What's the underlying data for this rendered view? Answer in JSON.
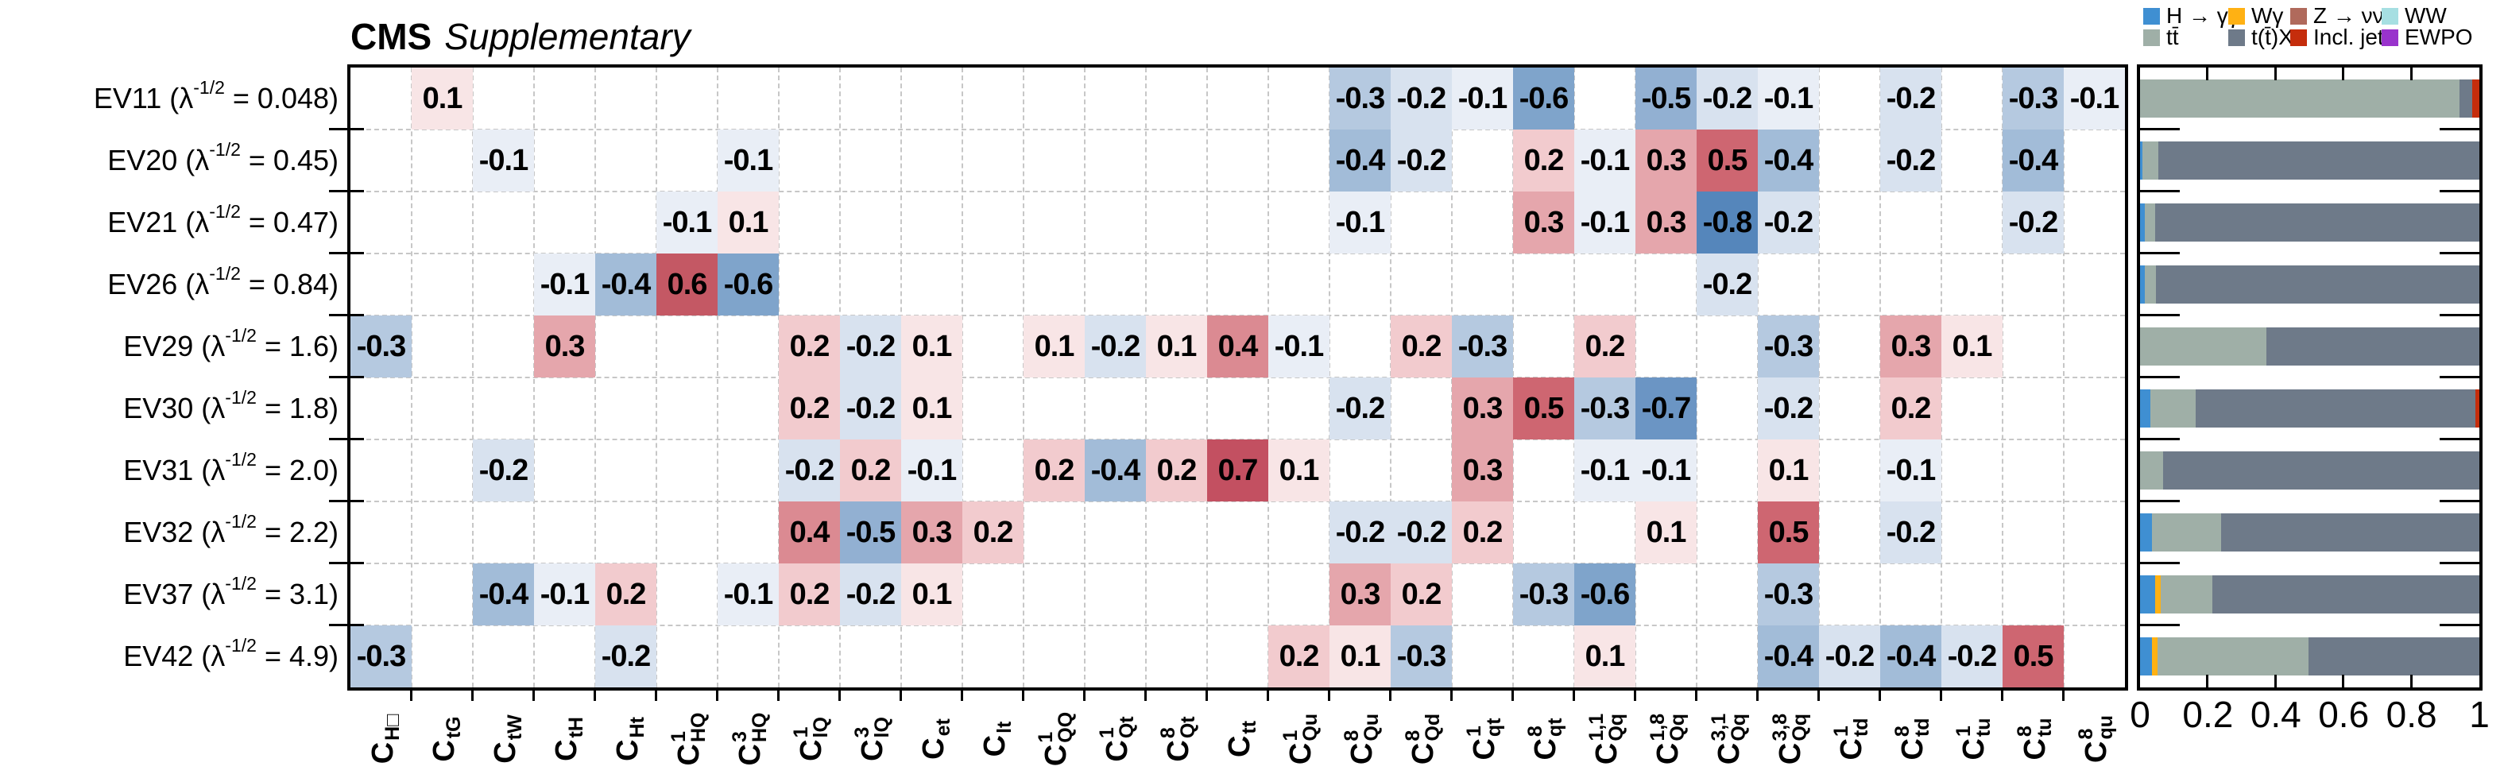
{
  "title": {
    "experiment": "CMS",
    "label": "Supplementary"
  },
  "legend": {
    "items": [
      {
        "id": "hgg",
        "label": "H → γγ",
        "color": "#3F8FD2"
      },
      {
        "id": "wgamma",
        "label": "Wγ",
        "color": "#FFB113"
      },
      {
        "id": "znunu",
        "label": "Z → νν",
        "color": "#B06A5C"
      },
      {
        "id": "ww",
        "label": "WW",
        "color": "#A6DFE2"
      },
      {
        "id": "ttbar",
        "label": "tt̄",
        "color": "#9FAFA7"
      },
      {
        "id": "ttx",
        "label": "t(t̄)X",
        "color": "#6E7A89"
      },
      {
        "id": "incljet",
        "label": "Incl. jet",
        "color": "#C52D0C"
      },
      {
        "id": "ewpo",
        "label": "EWPO",
        "color": "#9933CC"
      }
    ]
  },
  "colors": {
    "frame": "#000000",
    "grid": "#c7c7c7",
    "heatmap": {
      "-0.8": "#5586BB",
      "-0.7": "#6B95C4",
      "-0.6": "#7FA4CB",
      "-0.5": "#92B0D2",
      "-0.4": "#A2BCD8",
      "-0.3": "#B5C9E0",
      "-0.2": "#D8E2EF",
      "-0.1": "#E9EEF6",
      "0.1": "#F8E5E6",
      "0.2": "#F2CBCE",
      "0.3": "#E5A6AC",
      "0.4": "#DB8A92",
      "0.5": "#CE6671",
      "0.6": "#C45864",
      "0.7": "#C35061"
    }
  },
  "chart_data": [
    {
      "type": "heatmap",
      "title": "CMS Supplementary",
      "value_range": [
        -0.8,
        0.7
      ],
      "rows": [
        {
          "name": "EV11",
          "lambda": "0.048"
        },
        {
          "name": "EV20",
          "lambda": "0.45"
        },
        {
          "name": "EV21",
          "lambda": "0.47"
        },
        {
          "name": "EV26",
          "lambda": "0.84"
        },
        {
          "name": "EV29",
          "lambda": "1.6"
        },
        {
          "name": "EV30",
          "lambda": "1.8"
        },
        {
          "name": "EV31",
          "lambda": "2.0"
        },
        {
          "name": "EV32",
          "lambda": "2.2"
        },
        {
          "name": "EV37",
          "lambda": "3.1"
        },
        {
          "name": "EV42",
          "lambda": "4.9"
        }
      ],
      "row_label_format": "NAME (λ^-1/2 = LAMBDA)",
      "columns": [
        {
          "sup": "",
          "sub": "H□"
        },
        {
          "sup": "",
          "sub": "tG"
        },
        {
          "sup": "",
          "sub": "tW"
        },
        {
          "sup": "",
          "sub": "tH"
        },
        {
          "sup": "",
          "sub": "Ht"
        },
        {
          "sup": "1",
          "sub": "HQ"
        },
        {
          "sup": "3",
          "sub": "HQ"
        },
        {
          "sup": "1",
          "sub": "lQ"
        },
        {
          "sup": "3",
          "sub": "lQ"
        },
        {
          "sup": "",
          "sub": "et"
        },
        {
          "sup": "",
          "sub": "lt"
        },
        {
          "sup": "1",
          "sub": "QQ"
        },
        {
          "sup": "1",
          "sub": "Qt"
        },
        {
          "sup": "8",
          "sub": "Qt"
        },
        {
          "sup": "",
          "sub": "tt"
        },
        {
          "sup": "1",
          "sub": "Qu"
        },
        {
          "sup": "8",
          "sub": "Qu"
        },
        {
          "sup": "8",
          "sub": "Qd"
        },
        {
          "sup": "1",
          "sub": "qt"
        },
        {
          "sup": "8",
          "sub": "qt"
        },
        {
          "sup": "1,1",
          "sub": "Qq"
        },
        {
          "sup": "1,8",
          "sub": "Qq"
        },
        {
          "sup": "3,1",
          "sub": "Qq"
        },
        {
          "sup": "3,8",
          "sub": "Qq"
        },
        {
          "sup": "1",
          "sub": "td"
        },
        {
          "sup": "8",
          "sub": "td"
        },
        {
          "sup": "1",
          "sub": "tu"
        },
        {
          "sup": "8",
          "sub": "tu"
        },
        {
          "sup": "8",
          "sub": "qu"
        }
      ],
      "matrix": [
        [
          null,
          0.1,
          null,
          null,
          null,
          null,
          null,
          null,
          null,
          null,
          null,
          null,
          null,
          null,
          null,
          null,
          -0.3,
          -0.2,
          -0.1,
          -0.6,
          null,
          -0.5,
          -0.2,
          -0.1,
          null,
          -0.2,
          null,
          -0.3,
          -0.1
        ],
        [
          null,
          null,
          -0.1,
          null,
          null,
          null,
          -0.1,
          null,
          null,
          null,
          null,
          null,
          null,
          null,
          null,
          null,
          -0.4,
          -0.2,
          null,
          0.2,
          -0.1,
          0.3,
          0.5,
          -0.4,
          null,
          -0.2,
          null,
          -0.4,
          null
        ],
        [
          null,
          null,
          null,
          null,
          null,
          -0.1,
          0.1,
          null,
          null,
          null,
          null,
          null,
          null,
          null,
          null,
          null,
          -0.1,
          null,
          null,
          0.3,
          -0.1,
          0.3,
          -0.8,
          -0.2,
          null,
          null,
          null,
          -0.2,
          null
        ],
        [
          null,
          null,
          null,
          -0.1,
          -0.4,
          0.6,
          -0.6,
          null,
          null,
          null,
          null,
          null,
          null,
          null,
          null,
          null,
          null,
          null,
          null,
          null,
          null,
          null,
          -0.2,
          null,
          null,
          null,
          null,
          null,
          null
        ],
        [
          -0.3,
          null,
          null,
          0.3,
          null,
          null,
          null,
          0.2,
          -0.2,
          0.1,
          null,
          0.1,
          -0.2,
          0.1,
          0.4,
          -0.1,
          null,
          0.2,
          -0.3,
          null,
          0.2,
          null,
          null,
          -0.3,
          null,
          0.3,
          0.1,
          null,
          null
        ],
        [
          null,
          null,
          null,
          null,
          null,
          null,
          null,
          0.2,
          -0.2,
          0.1,
          null,
          null,
          null,
          null,
          null,
          null,
          -0.2,
          null,
          0.3,
          0.5,
          -0.3,
          -0.7,
          null,
          -0.2,
          null,
          0.2,
          null,
          null,
          null
        ],
        [
          null,
          null,
          -0.2,
          null,
          null,
          null,
          null,
          -0.2,
          0.2,
          -0.1,
          null,
          0.2,
          -0.4,
          0.2,
          0.7,
          0.1,
          null,
          null,
          0.3,
          null,
          -0.1,
          -0.1,
          null,
          0.1,
          null,
          -0.1,
          null,
          null,
          null
        ],
        [
          null,
          null,
          null,
          null,
          null,
          null,
          null,
          0.4,
          -0.5,
          0.3,
          0.2,
          null,
          null,
          null,
          null,
          null,
          -0.2,
          -0.2,
          0.2,
          null,
          null,
          0.1,
          null,
          0.5,
          null,
          -0.2,
          null,
          null,
          null
        ],
        [
          null,
          null,
          -0.4,
          -0.1,
          0.2,
          null,
          -0.1,
          0.2,
          -0.2,
          0.1,
          null,
          null,
          null,
          null,
          null,
          null,
          0.3,
          0.2,
          null,
          -0.3,
          -0.6,
          null,
          null,
          -0.3,
          null,
          null,
          null,
          null,
          null
        ],
        [
          -0.3,
          null,
          null,
          null,
          -0.2,
          null,
          null,
          null,
          null,
          null,
          null,
          null,
          null,
          null,
          null,
          0.2,
          0.1,
          -0.3,
          null,
          null,
          0.1,
          null,
          null,
          -0.4,
          -0.2,
          -0.4,
          -0.2,
          0.5,
          null
        ]
      ]
    },
    {
      "type": "stacked-bar-horizontal",
      "xlim": [
        0,
        1
      ],
      "xticks": [
        "0",
        "0.2",
        "0.4",
        "0.6",
        "0.8",
        "1"
      ],
      "categories": [
        "EV11",
        "EV20",
        "EV21",
        "EV26",
        "EV29",
        "EV30",
        "EV31",
        "EV32",
        "EV37",
        "EV42"
      ],
      "bars": [
        [
          {
            "channel": "ttbar",
            "fraction": 0.942
          },
          {
            "channel": "ttx",
            "fraction": 0.038
          },
          {
            "channel": "incljet",
            "fraction": 0.02
          }
        ],
        [
          {
            "channel": "hgg",
            "fraction": 0.008
          },
          {
            "channel": "ttbar",
            "fraction": 0.045
          },
          {
            "channel": "ttx",
            "fraction": 0.947
          }
        ],
        [
          {
            "channel": "hgg",
            "fraction": 0.013
          },
          {
            "channel": "ttbar",
            "fraction": 0.031
          },
          {
            "channel": "ttx",
            "fraction": 0.956
          }
        ],
        [
          {
            "channel": "hgg",
            "fraction": 0.014
          },
          {
            "channel": "ttbar",
            "fraction": 0.033
          },
          {
            "channel": "ttx",
            "fraction": 0.953
          }
        ],
        [
          {
            "channel": "ttbar",
            "fraction": 0.373
          },
          {
            "channel": "ttx",
            "fraction": 0.627
          }
        ],
        [
          {
            "channel": "hgg",
            "fraction": 0.031
          },
          {
            "channel": "ttbar",
            "fraction": 0.132
          },
          {
            "channel": "ttx",
            "fraction": 0.825
          },
          {
            "channel": "incljet",
            "fraction": 0.012
          }
        ],
        [
          {
            "channel": "ttbar",
            "fraction": 0.067
          },
          {
            "channel": "ttx",
            "fraction": 0.933
          }
        ],
        [
          {
            "channel": "hgg",
            "fraction": 0.035
          },
          {
            "channel": "ttbar",
            "fraction": 0.203
          },
          {
            "channel": "ttx",
            "fraction": 0.762
          }
        ],
        [
          {
            "channel": "hgg",
            "fraction": 0.044
          },
          {
            "channel": "wgamma",
            "fraction": 0.016
          },
          {
            "channel": "ttbar",
            "fraction": 0.153
          },
          {
            "channel": "ttx",
            "fraction": 0.787
          }
        ],
        [
          {
            "channel": "hgg",
            "fraction": 0.034
          },
          {
            "channel": "wgamma",
            "fraction": 0.018
          },
          {
            "channel": "ttbar",
            "fraction": 0.445
          },
          {
            "channel": "ttx",
            "fraction": 0.503
          }
        ]
      ]
    }
  ]
}
